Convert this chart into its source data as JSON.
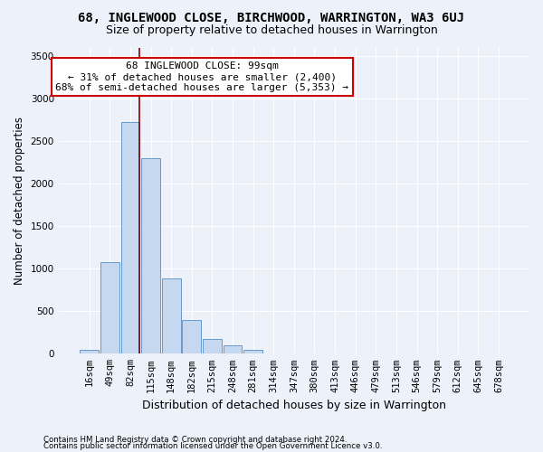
{
  "title_line1": "68, INGLEWOOD CLOSE, BIRCHWOOD, WARRINGTON, WA3 6UJ",
  "title_line2": "Size of property relative to detached houses in Warrington",
  "xlabel": "Distribution of detached houses by size in Warrington",
  "ylabel": "Number of detached properties",
  "footnote1": "Contains HM Land Registry data © Crown copyright and database right 2024.",
  "footnote2": "Contains public sector information licensed under the Open Government Licence v3.0.",
  "bar_labels": [
    "16sqm",
    "49sqm",
    "82sqm",
    "115sqm",
    "148sqm",
    "182sqm",
    "215sqm",
    "248sqm",
    "281sqm",
    "314sqm",
    "347sqm",
    "380sqm",
    "413sqm",
    "446sqm",
    "479sqm",
    "513sqm",
    "546sqm",
    "579sqm",
    "612sqm",
    "645sqm",
    "678sqm"
  ],
  "bar_values": [
    50,
    1080,
    2720,
    2300,
    880,
    400,
    175,
    100,
    50,
    0,
    0,
    0,
    0,
    0,
    0,
    0,
    0,
    0,
    0,
    0,
    0
  ],
  "bar_color": "#c5d8f0",
  "bar_edge_color": "#6699cc",
  "annotation_text": "68 INGLEWOOD CLOSE: 99sqm\n← 31% of detached houses are smaller (2,400)\n68% of semi-detached houses are larger (5,353) →",
  "annotation_box_color": "white",
  "annotation_box_edge_color": "#cc0000",
  "vline_color": "#880000",
  "vline_x": 2.45,
  "ylim": [
    0,
    3600
  ],
  "yticks": [
    0,
    500,
    1000,
    1500,
    2000,
    2500,
    3000,
    3500
  ],
  "bg_color": "#edf2fa",
  "plot_bg_color": "#edf2fa",
  "grid_color": "#ffffff",
  "title1_fontsize": 10,
  "title2_fontsize": 9,
  "xlabel_fontsize": 9,
  "ylabel_fontsize": 8.5,
  "tick_fontsize": 7.5,
  "annot_fontsize": 8
}
